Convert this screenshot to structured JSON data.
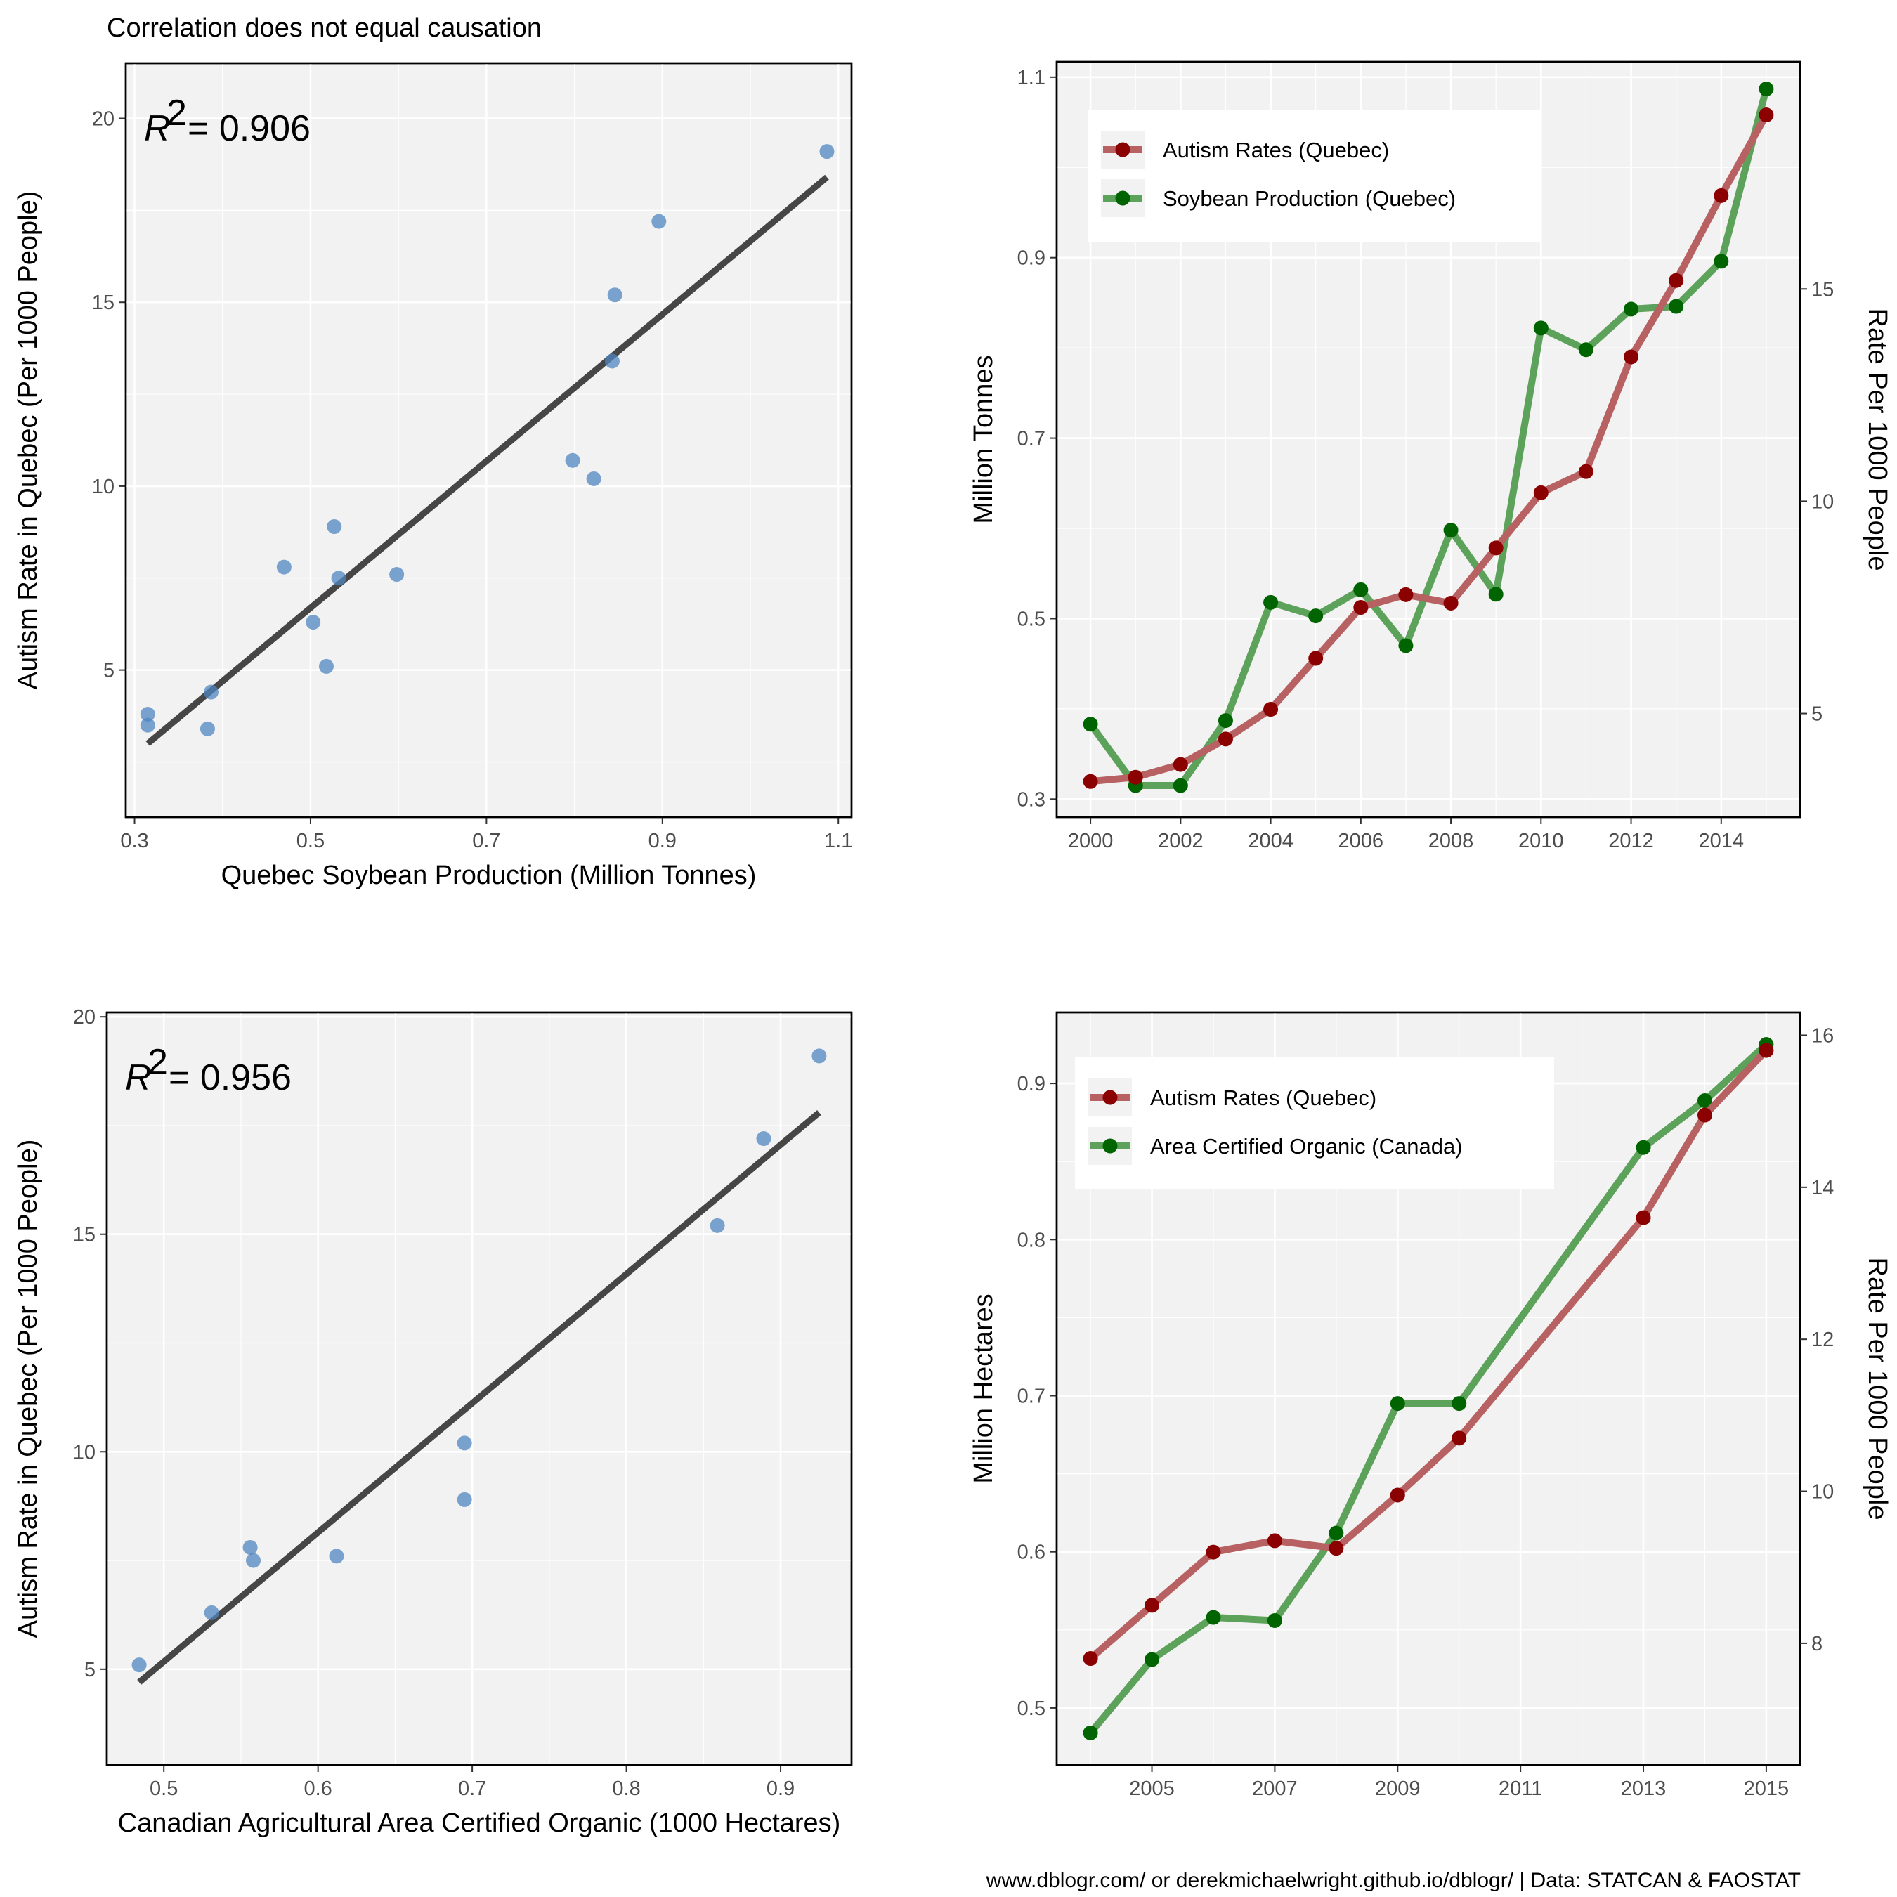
{
  "title": "Correlation does not equal causation",
  "caption": "www.dblogr.com/ or derekmichaelwright.github.io/dblogr/ | Data: STATCAN & FAOSTAT",
  "colors": {
    "point": "#4f86c0",
    "fit_line": "#333333",
    "autism_series": "#8b0000",
    "green_series": "#006400",
    "autism_line": "#b86163",
    "green_line": "#5da25a"
  },
  "chart_data": [
    {
      "type": "scatter",
      "r2_label": "R",
      "r2_value": "= 0.906",
      "xlabel": "Quebec Soybean Production (Million Tonnes)",
      "ylabel": "Autism Rate in Quebec (Per 1000 People)",
      "xlim": [
        0.29,
        1.115
      ],
      "ylim": [
        1.0,
        21.5
      ],
      "xticks": [
        0.3,
        0.5,
        0.7,
        0.9,
        1.1
      ],
      "xtick_labels": [
        "0.3",
        "0.5",
        "0.7",
        "0.9",
        "1.1"
      ],
      "yticks": [
        5,
        10,
        15,
        20
      ],
      "ytick_labels": [
        "5",
        "10",
        "15",
        "20"
      ],
      "grid": true,
      "points": [
        {
          "x": 0.315,
          "y": 3.8
        },
        {
          "x": 0.315,
          "y": 3.5
        },
        {
          "x": 0.383,
          "y": 3.4
        },
        {
          "x": 0.387,
          "y": 4.4
        },
        {
          "x": 0.47,
          "y": 7.8
        },
        {
          "x": 0.503,
          "y": 6.3
        },
        {
          "x": 0.518,
          "y": 5.1
        },
        {
          "x": 0.527,
          "y": 8.9
        },
        {
          "x": 0.532,
          "y": 7.5
        },
        {
          "x": 0.598,
          "y": 7.6
        },
        {
          "x": 0.798,
          "y": 10.7
        },
        {
          "x": 0.822,
          "y": 10.2
        },
        {
          "x": 0.843,
          "y": 13.4
        },
        {
          "x": 0.846,
          "y": 15.2
        },
        {
          "x": 0.896,
          "y": 17.2
        },
        {
          "x": 1.087,
          "y": 19.1
        }
      ],
      "fit": {
        "x": [
          0.315,
          1.087
        ],
        "y": [
          3.0,
          18.4
        ]
      }
    },
    {
      "type": "line",
      "xlabel": "",
      "ylabel": "Million Tonnes",
      "ylabel_right": "Rate Per 1000 People",
      "xlim": [
        1999.25,
        2015.75
      ],
      "ylim": [
        0.28,
        1.117
      ],
      "ylim_right": [
        2.56,
        20.35
      ],
      "xticks": [
        2000,
        2002,
        2004,
        2006,
        2008,
        2010,
        2012,
        2014
      ],
      "xtick_labels": [
        "2000",
        "2002",
        "2004",
        "2006",
        "2008",
        "2010",
        "2012",
        "2014"
      ],
      "yticks": [
        0.3,
        0.5,
        0.7,
        0.9,
        1.1
      ],
      "ytick_labels": [
        "0.3",
        "0.5",
        "0.7",
        "0.9",
        "1.1"
      ],
      "yticks_right": [
        5,
        10,
        15
      ],
      "ytick_labels_right": [
        "5",
        "10",
        "15"
      ],
      "grid": true,
      "legend_position": "top-left",
      "series": [
        {
          "name": "Autism Rates (Quebec)",
          "axis": "right",
          "x": [
            2000,
            2001,
            2002,
            2003,
            2004,
            2005,
            2006,
            2007,
            2008,
            2009,
            2010,
            2011,
            2012,
            2013,
            2014,
            2015
          ],
          "values": [
            3.4,
            3.5,
            3.8,
            4.4,
            5.1,
            6.3,
            7.5,
            7.8,
            7.6,
            8.9,
            10.2,
            10.7,
            13.4,
            15.2,
            17.2,
            19.1
          ]
        },
        {
          "name": "Soybean Production (Quebec)",
          "axis": "left",
          "x": [
            2000,
            2001,
            2002,
            2003,
            2004,
            2005,
            2006,
            2007,
            2008,
            2009,
            2010,
            2011,
            2012,
            2013,
            2014,
            2015
          ],
          "values": [
            0.383,
            0.315,
            0.315,
            0.387,
            0.518,
            0.503,
            0.532,
            0.47,
            0.598,
            0.527,
            0.822,
            0.798,
            0.843,
            0.846,
            0.896,
            1.087
          ]
        }
      ]
    },
    {
      "type": "scatter",
      "r2_label": "R",
      "r2_value": "= 0.956",
      "xlabel": "Canadian Agricultural Area Certified Organic (1000 Hectares)",
      "ylabel": "Autism Rate in Quebec (Per 1000 People)",
      "xlim": [
        0.463,
        0.946
      ],
      "ylim": [
        2.8,
        20.1
      ],
      "xticks": [
        0.5,
        0.6,
        0.7,
        0.8,
        0.9
      ],
      "xtick_labels": [
        "0.5",
        "0.6",
        "0.7",
        "0.8",
        "0.9"
      ],
      "yticks": [
        5,
        10,
        15,
        20
      ],
      "ytick_labels": [
        "5",
        "10",
        "15",
        "20"
      ],
      "grid": true,
      "points": [
        {
          "x": 0.484,
          "y": 5.1
        },
        {
          "x": 0.531,
          "y": 6.3
        },
        {
          "x": 0.556,
          "y": 7.8
        },
        {
          "x": 0.558,
          "y": 7.5
        },
        {
          "x": 0.612,
          "y": 7.6
        },
        {
          "x": 0.695,
          "y": 10.2
        },
        {
          "x": 0.695,
          "y": 8.9
        },
        {
          "x": 0.859,
          "y": 15.2
        },
        {
          "x": 0.889,
          "y": 17.2
        },
        {
          "x": 0.925,
          "y": 19.1
        }
      ],
      "fit": {
        "x": [
          0.484,
          0.925
        ],
        "y": [
          4.7,
          17.8
        ]
      }
    },
    {
      "type": "line",
      "xlabel": "",
      "ylabel": "Million Hectares",
      "ylabel_right": "Rate Per 1000 People",
      "xlim": [
        2003.45,
        2015.55
      ],
      "ylim": [
        0.4635,
        0.9455
      ],
      "ylim_right": [
        6.4,
        16.3
      ],
      "xticks": [
        2005,
        2007,
        2009,
        2011,
        2013,
        2015
      ],
      "xtick_labels": [
        "2005",
        "2007",
        "2009",
        "2011",
        "2013",
        "2015"
      ],
      "yticks": [
        0.5,
        0.6,
        0.7,
        0.8,
        0.9
      ],
      "ytick_labels": [
        "0.5",
        "0.6",
        "0.7",
        "0.8",
        "0.9"
      ],
      "yticks_right": [
        8,
        10,
        12,
        14,
        16
      ],
      "ytick_labels_right": [
        "8",
        "10",
        "12",
        "14",
        "16"
      ],
      "grid": true,
      "legend_position": "top-left",
      "series": [
        {
          "name": "Autism Rates (Quebec)",
          "axis": "right",
          "x": [
            2004,
            2005,
            2006,
            2007,
            2008,
            2009,
            2010,
            2013,
            2014,
            2015
          ],
          "values": [
            7.8,
            8.5,
            9.2,
            9.35,
            9.25,
            9.95,
            10.7,
            13.6,
            14.95,
            15.8
          ]
        },
        {
          "name": "Area Certified Organic (Canada)",
          "axis": "left",
          "x": [
            2004,
            2005,
            2006,
            2007,
            2008,
            2009,
            2010,
            2013,
            2014,
            2015
          ],
          "values": [
            0.484,
            0.531,
            0.558,
            0.556,
            0.612,
            0.695,
            0.695,
            0.859,
            0.889,
            0.925
          ]
        }
      ]
    }
  ]
}
